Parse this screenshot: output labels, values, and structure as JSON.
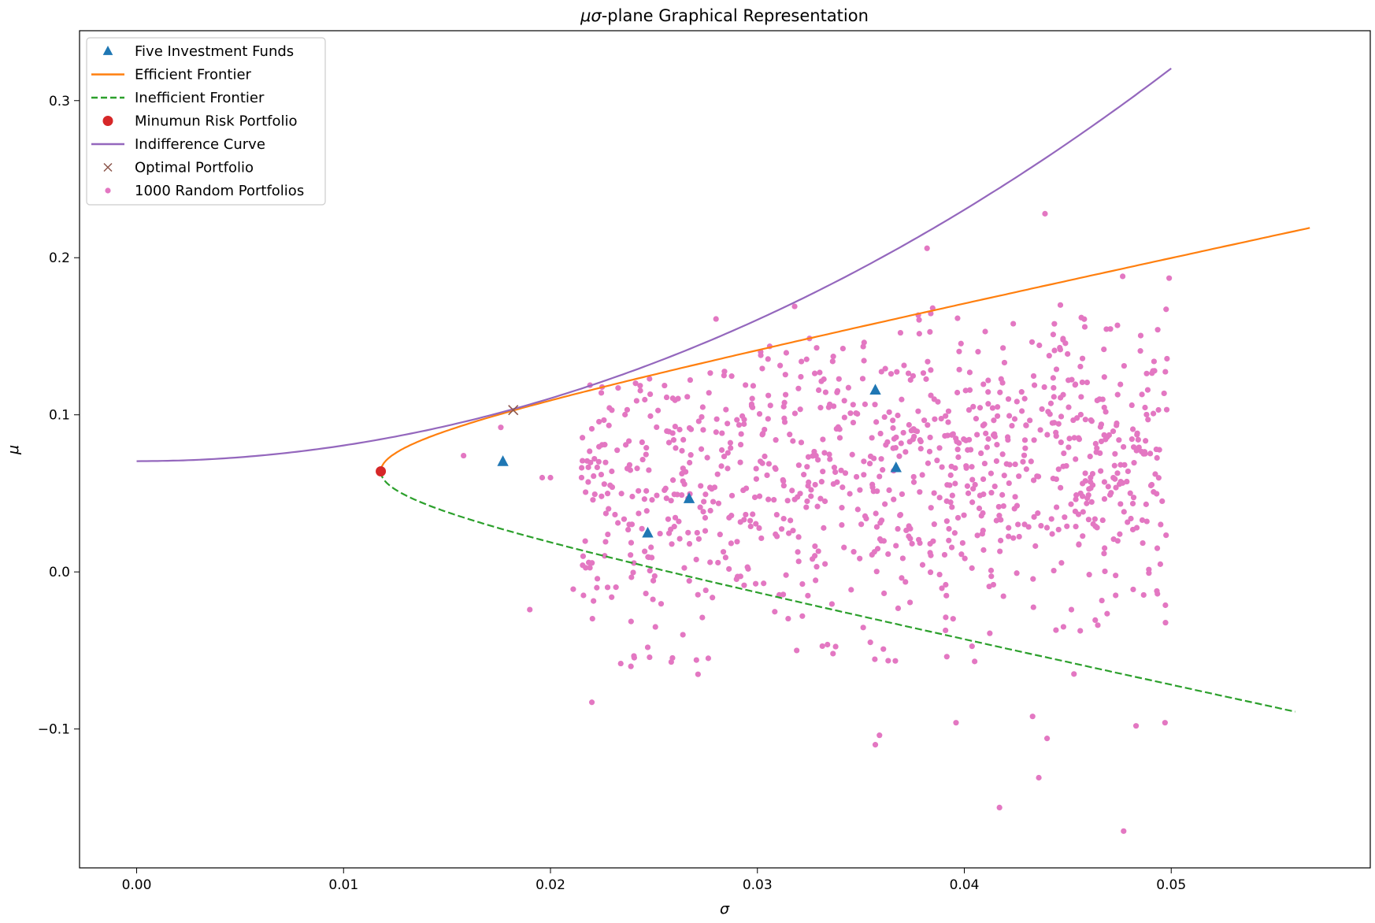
{
  "chart_data": {
    "type": "scatter",
    "title_math": "μσ",
    "title_rest": "-plane Graphical Representation",
    "xlabel": "σ",
    "ylabel": "μ",
    "xlim": [
      -0.00276,
      0.05962
    ],
    "ylim": [
      -0.1884,
      0.3445
    ],
    "xticks": [
      0.0,
      0.01,
      0.02,
      0.03,
      0.04,
      0.05
    ],
    "xtick_labels": [
      "0.00",
      "0.01",
      "0.02",
      "0.03",
      "0.04",
      "0.05"
    ],
    "yticks": [
      -0.1,
      0.0,
      0.1,
      0.2,
      0.3
    ],
    "ytick_labels": [
      "−0.1",
      "0.0",
      "0.1",
      "0.2",
      "0.3"
    ],
    "grid": false,
    "legend_placement": "top-left",
    "legend": [
      {
        "label": "Five Investment Funds",
        "marker": "triangle",
        "color": "#1f77b4"
      },
      {
        "label": "Efficient Frontier",
        "marker": "line",
        "color": "#ff7f0e"
      },
      {
        "label": "Inefficient Frontier",
        "marker": "dashed",
        "color": "#2ca02c"
      },
      {
        "label": "Minumun Risk Portfolio",
        "marker": "circle",
        "color": "#d62728"
      },
      {
        "label": "Indifference Curve",
        "marker": "line",
        "color": "#9467bd"
      },
      {
        "label": "Optimal Portfolio",
        "marker": "x",
        "color": "#8c564b"
      },
      {
        "label": "1000 Random Portfolios",
        "marker": "dot",
        "color": "#e377c2"
      }
    ],
    "five_funds": [
      {
        "sigma": 0.0177,
        "mu": 0.0702
      },
      {
        "sigma": 0.0247,
        "mu": 0.0247
      },
      {
        "sigma": 0.0267,
        "mu": 0.0466
      },
      {
        "sigma": 0.0357,
        "mu": 0.1157
      },
      {
        "sigma": 0.0367,
        "mu": 0.0663
      }
    ],
    "min_risk_portfolio": {
      "sigma": 0.0118,
      "mu": 0.064
    },
    "frontier": {
      "variance_coefficient": 0.128,
      "efficient_mu_max": 0.219,
      "inefficient_mu_min": -0.089,
      "sample_points": [
        {
          "sigma": 0.0118,
          "mu": 0.064
        },
        {
          "sigma": 0.0138,
          "mu": 0.084
        },
        {
          "sigma": 0.0185,
          "mu": 0.104
        },
        {
          "sigma": 0.0245,
          "mu": 0.124
        },
        {
          "sigma": 0.0377,
          "mu": 0.164
        },
        {
          "sigma": 0.0515,
          "mu": 0.204
        },
        {
          "sigma": 0.0567,
          "mu": 0.219
        },
        {
          "sigma": 0.0567,
          "mu": -0.089
        }
      ]
    },
    "indifference_curve": {
      "intercept": 0.0705,
      "coefficient": 100,
      "sigma_range": [
        0.0,
        0.05
      ]
    },
    "optimal_portfolio": {
      "sigma": 0.0182,
      "mu": 0.103
    },
    "random_portfolios": {
      "count": 1000,
      "sigma_range": [
        0.0215,
        0.0499
      ],
      "mu_mean": 0.065,
      "mu_sd": 0.05,
      "seed": 7,
      "listed_points": [
        {
          "sigma": 0.0158,
          "mu": 0.074
        },
        {
          "sigma": 0.019,
          "mu": -0.024
        },
        {
          "sigma": 0.022,
          "mu": -0.083
        },
        {
          "sigma": 0.0211,
          "mu": -0.011
        },
        {
          "sigma": 0.028,
          "mu": 0.161
        },
        {
          "sigma": 0.0318,
          "mu": 0.169
        },
        {
          "sigma": 0.0382,
          "mu": 0.206
        },
        {
          "sigma": 0.0439,
          "mu": 0.228
        },
        {
          "sigma": 0.0477,
          "mu": -0.165
        },
        {
          "sigma": 0.0417,
          "mu": -0.15
        },
        {
          "sigma": 0.0436,
          "mu": -0.131
        },
        {
          "sigma": 0.0357,
          "mu": -0.11
        },
        {
          "sigma": 0.0359,
          "mu": -0.104
        },
        {
          "sigma": 0.0396,
          "mu": -0.096
        },
        {
          "sigma": 0.0433,
          "mu": -0.092
        },
        {
          "sigma": 0.044,
          "mu": -0.106
        },
        {
          "sigma": 0.0483,
          "mu": -0.098
        },
        {
          "sigma": 0.0497,
          "mu": -0.096
        },
        {
          "sigma": 0.0453,
          "mu": -0.065
        },
        {
          "sigma": 0.0405,
          "mu": -0.057
        },
        {
          "sigma": 0.0247,
          "mu": -0.048
        },
        {
          "sigma": 0.0319,
          "mu": -0.05
        },
        {
          "sigma": 0.0264,
          "mu": -0.04
        },
        {
          "sigma": 0.0499,
          "mu": 0.187
        },
        {
          "sigma": 0.0176,
          "mu": 0.092
        },
        {
          "sigma": 0.0196,
          "mu": 0.06
        },
        {
          "sigma": 0.02,
          "mu": 0.06
        }
      ]
    }
  }
}
